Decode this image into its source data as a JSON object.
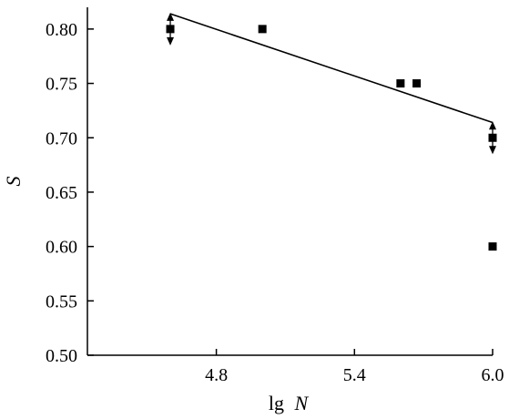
{
  "chart_data": {
    "type": "scatter",
    "xlabel": "lg N",
    "xlabel_parts": {
      "prefix": "lg",
      "variable": "N"
    },
    "ylabel": "S",
    "xlim": [
      4.24,
      6.0
    ],
    "ylim": [
      0.5,
      0.82
    ],
    "xticks": [
      4.8,
      5.4,
      6.0
    ],
    "xtick_labels": [
      "4.8",
      "5.4",
      "6.0"
    ],
    "yticks": [
      0.5,
      0.55,
      0.6,
      0.65,
      0.7,
      0.75,
      0.8
    ],
    "ytick_labels": [
      "0.50",
      "0.55",
      "0.60",
      "0.65",
      "0.70",
      "0.75",
      "0.80"
    ],
    "grid": false,
    "series": [
      {
        "marker": "square",
        "color": "#000000",
        "points": [
          {
            "x": 4.6,
            "y": 0.8,
            "runout": true
          },
          {
            "x": 5.0,
            "y": 0.8
          },
          {
            "x": 5.6,
            "y": 0.75
          },
          {
            "x": 5.67,
            "y": 0.75
          },
          {
            "x": 6.0,
            "y": 0.7,
            "runout": true
          },
          {
            "x": 6.0,
            "y": 0.6
          }
        ]
      }
    ],
    "fit_line": {
      "x": [
        4.6,
        6.0
      ],
      "y": [
        0.814,
        0.714
      ],
      "color": "#000000"
    }
  }
}
